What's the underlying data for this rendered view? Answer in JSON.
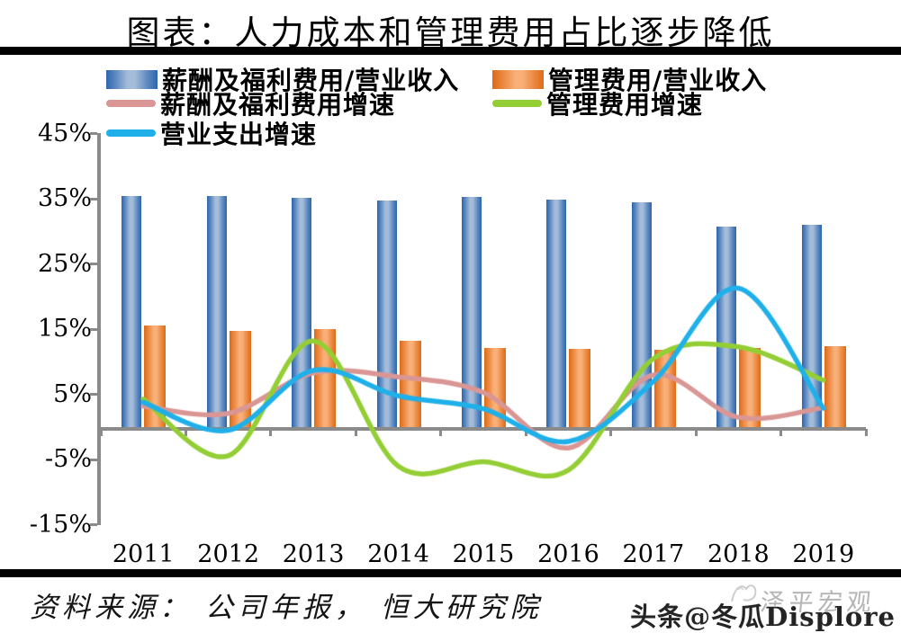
{
  "title": "图表：人力成本和管理费用占比逐步降低",
  "legend": {
    "items": [
      {
        "label": "薪酬及福利费用/营业收入",
        "type": "bar",
        "swatch": "blue-gradient"
      },
      {
        "label": "管理费用/营业收入",
        "type": "bar",
        "swatch": "orange-gradient"
      },
      {
        "label": "薪酬及福利费用增速",
        "type": "line",
        "color": "#d99694"
      },
      {
        "label": "管理费用增速",
        "type": "line",
        "color": "#94ce35"
      },
      {
        "label": "营业支出增速",
        "type": "line",
        "color": "#1fb0ea"
      }
    ]
  },
  "chart_data": {
    "type": "bar",
    "subtype": "combo bar + smooth line, unit %",
    "categories": [
      "2011",
      "2012",
      "2013",
      "2014",
      "2015",
      "2016",
      "2017",
      "2018",
      "2019"
    ],
    "bar_series": [
      {
        "name": "薪酬及福利费用/营业收入",
        "color": "#2d65ac",
        "values": [
          35.5,
          35.5,
          35.2,
          34.8,
          35.3,
          34.9,
          34.5,
          30.7,
          31.1
        ]
      },
      {
        "name": "管理费用/营业收入",
        "color": "#df6a16",
        "values": [
          15.6,
          14.7,
          15.1,
          13.2,
          12.2,
          12.0,
          11.9,
          12.1,
          12.4
        ]
      }
    ],
    "line_series": [
      {
        "name": "薪酬及福利费用增速",
        "color": "#d99694",
        "values": [
          3.2,
          2.1,
          8.3,
          7.7,
          5.3,
          -3.2,
          8.0,
          1.5,
          3.0
        ]
      },
      {
        "name": "管理费用增速",
        "color": "#94ce35",
        "values": [
          4.3,
          -4.4,
          13.2,
          -6.0,
          -5.3,
          -6.6,
          10.5,
          12.3,
          7.2
        ]
      },
      {
        "name": "营业支出增速",
        "color": "#1fb0ea",
        "values": [
          3.8,
          -0.5,
          8.7,
          4.8,
          2.8,
          -2.2,
          7.0,
          21.3,
          2.9
        ]
      }
    ],
    "y_ticks": [
      "45%",
      "35%",
      "25%",
      "15%",
      "5%",
      "-5%",
      "-15%"
    ],
    "ylim": [
      -15,
      45
    ],
    "grid": false,
    "legend_position": "top"
  },
  "footer": {
    "source": "资料来源：  公司年报，  恒大研究院"
  },
  "watermark": {
    "main": "头条@冬瓜Displore",
    "secondary": "泽平宏观"
  }
}
